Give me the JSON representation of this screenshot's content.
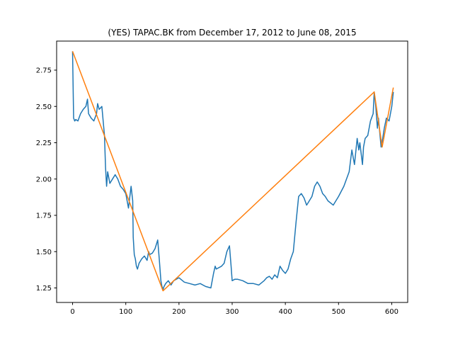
{
  "chart_data": {
    "type": "line",
    "title": "(YES) TAPAC.BK from December 17, 2012 to June 08, 2015",
    "xlabel": "",
    "ylabel": "",
    "xlim": [
      -30,
      630
    ],
    "ylim": [
      1.15,
      2.95
    ],
    "xticks": [
      0,
      100,
      200,
      300,
      400,
      500,
      600
    ],
    "yticks": [
      1.25,
      1.5,
      1.75,
      2.0,
      2.25,
      2.5,
      2.75
    ],
    "ytick_labels": [
      "1.25",
      "1.50",
      "1.75",
      "2.00",
      "2.25",
      "2.50",
      "2.75"
    ],
    "grid": false,
    "series": [
      {
        "color": "#1f77b4",
        "x": [
          0,
          2,
          4,
          6,
          10,
          15,
          20,
          25,
          28,
          30,
          35,
          40,
          45,
          47,
          50,
          55,
          60,
          62,
          64,
          66,
          70,
          75,
          80,
          85,
          90,
          95,
          100,
          105,
          110,
          113,
          114,
          116,
          118,
          120,
          122,
          125,
          130,
          135,
          140,
          143,
          145,
          150,
          155,
          160,
          163,
          166,
          168,
          170,
          172,
          175,
          180,
          185,
          190,
          200,
          210,
          220,
          230,
          240,
          250,
          260,
          265,
          268,
          270,
          280,
          285,
          290,
          295,
          298,
          300,
          305,
          310,
          320,
          330,
          340,
          350,
          360,
          365,
          370,
          375,
          380,
          385,
          390,
          395,
          400,
          405,
          410,
          415,
          420,
          425,
          430,
          435,
          440,
          445,
          450,
          455,
          460,
          465,
          470,
          475,
          480,
          490,
          500,
          510,
          520,
          525,
          530,
          535,
          538,
          540,
          545,
          547,
          550,
          555,
          560,
          565,
          567,
          570,
          573,
          575,
          578,
          580,
          583,
          586,
          590,
          595,
          600,
          603
        ],
        "y": [
          2.88,
          2.42,
          2.4,
          2.41,
          2.4,
          2.45,
          2.48,
          2.5,
          2.55,
          2.45,
          2.42,
          2.4,
          2.45,
          2.52,
          2.48,
          2.5,
          2.3,
          2.08,
          1.95,
          2.05,
          1.97,
          2.0,
          2.03,
          2.0,
          1.95,
          1.93,
          1.9,
          1.8,
          1.95,
          1.85,
          1.6,
          1.48,
          1.45,
          1.4,
          1.38,
          1.42,
          1.45,
          1.47,
          1.44,
          1.5,
          1.48,
          1.49,
          1.52,
          1.58,
          1.45,
          1.3,
          1.26,
          1.24,
          1.26,
          1.28,
          1.3,
          1.27,
          1.3,
          1.32,
          1.29,
          1.28,
          1.27,
          1.28,
          1.26,
          1.25,
          1.35,
          1.4,
          1.38,
          1.4,
          1.42,
          1.5,
          1.54,
          1.4,
          1.3,
          1.31,
          1.31,
          1.3,
          1.28,
          1.28,
          1.27,
          1.3,
          1.32,
          1.33,
          1.31,
          1.34,
          1.32,
          1.4,
          1.37,
          1.35,
          1.38,
          1.45,
          1.5,
          1.7,
          1.88,
          1.9,
          1.87,
          1.82,
          1.85,
          1.88,
          1.95,
          1.98,
          1.95,
          1.9,
          1.88,
          1.85,
          1.82,
          1.88,
          1.95,
          2.05,
          2.2,
          2.1,
          2.28,
          2.2,
          2.25,
          2.1,
          2.22,
          2.28,
          2.3,
          2.4,
          2.45,
          2.6,
          2.5,
          2.35,
          2.42,
          2.3,
          2.22,
          2.28,
          2.35,
          2.42,
          2.4,
          2.5,
          2.6
        ]
      },
      {
        "color": "#ff7f0e",
        "x": [
          0,
          170,
          567,
          582,
          603
        ],
        "y": [
          2.88,
          1.23,
          2.6,
          2.22,
          2.63
        ]
      }
    ]
  }
}
